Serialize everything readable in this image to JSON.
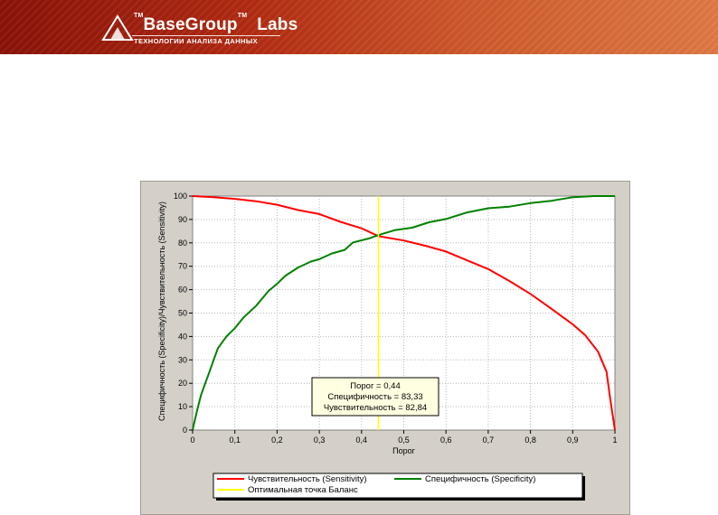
{
  "header": {
    "brand": "BaseGroup",
    "brand_suffix": "Labs",
    "trademark": "TM",
    "tagline": "ТЕХНОЛОГИИ АНАЛИЗА ДАННЫХ"
  },
  "chart_data": {
    "type": "line",
    "xlabel": "Порог",
    "ylabel": "Специфичность (Specificity)/Чувствительность (Sensitivity)",
    "xlim": [
      0,
      1
    ],
    "ylim": [
      0,
      100
    ],
    "x_ticks": [
      "0",
      "0,1",
      "0,2",
      "0,3",
      "0,4",
      "0,5",
      "0,6",
      "0,7",
      "0,8",
      "0,9",
      "1"
    ],
    "y_ticks": [
      "0",
      "10",
      "20",
      "30",
      "40",
      "50",
      "60",
      "70",
      "80",
      "90",
      "100"
    ],
    "grid": true,
    "series": [
      {
        "name": "Чувствительность (Sensitivity)",
        "color": "#ff0000",
        "points": [
          [
            0,
            100
          ],
          [
            0.05,
            99.5
          ],
          [
            0.1,
            98.8
          ],
          [
            0.15,
            97.8
          ],
          [
            0.2,
            96.3
          ],
          [
            0.25,
            94
          ],
          [
            0.3,
            92.3
          ],
          [
            0.35,
            89
          ],
          [
            0.4,
            86.2
          ],
          [
            0.44,
            82.84
          ],
          [
            0.5,
            81
          ],
          [
            0.55,
            78.8
          ],
          [
            0.6,
            76.3
          ],
          [
            0.65,
            72.5
          ],
          [
            0.7,
            68.8
          ],
          [
            0.75,
            63.7
          ],
          [
            0.8,
            58.2
          ],
          [
            0.85,
            51.8
          ],
          [
            0.9,
            45.2
          ],
          [
            0.93,
            40.5
          ],
          [
            0.96,
            33.5
          ],
          [
            0.98,
            25
          ],
          [
            0.99,
            12
          ],
          [
            1,
            0
          ]
        ]
      },
      {
        "name": "Специфичность (Specificity)",
        "color": "#008000",
        "points": [
          [
            0,
            0
          ],
          [
            0.01,
            8
          ],
          [
            0.02,
            15
          ],
          [
            0.03,
            20
          ],
          [
            0.04,
            25
          ],
          [
            0.05,
            30
          ],
          [
            0.06,
            35
          ],
          [
            0.08,
            40
          ],
          [
            0.1,
            43.5
          ],
          [
            0.12,
            48
          ],
          [
            0.15,
            53
          ],
          [
            0.18,
            59.5
          ],
          [
            0.2,
            62.5
          ],
          [
            0.22,
            66
          ],
          [
            0.25,
            69.5
          ],
          [
            0.28,
            72
          ],
          [
            0.3,
            73
          ],
          [
            0.33,
            75.5
          ],
          [
            0.36,
            77
          ],
          [
            0.38,
            80.2
          ],
          [
            0.42,
            82
          ],
          [
            0.44,
            83.33
          ],
          [
            0.48,
            85.5
          ],
          [
            0.52,
            86.5
          ],
          [
            0.56,
            88.8
          ],
          [
            0.6,
            90.2
          ],
          [
            0.65,
            93
          ],
          [
            0.7,
            94.8
          ],
          [
            0.75,
            95.5
          ],
          [
            0.8,
            97
          ],
          [
            0.85,
            98
          ],
          [
            0.9,
            99.5
          ],
          [
            0.95,
            100
          ],
          [
            1,
            100
          ]
        ]
      },
      {
        "name": "Оптимальная точка Баланс",
        "color": "#ffff00",
        "points": [
          [
            0.44,
            0
          ],
          [
            0.44,
            100
          ]
        ]
      }
    ],
    "annotation": {
      "lines": [
        "Порог =  0,44",
        "Специфичность = 83,33",
        "Чувствительность = 82,84"
      ]
    },
    "legend": {
      "placement": "bottom",
      "items": [
        {
          "label": "Чувствительность (Sensitivity)",
          "color": "#ff0000"
        },
        {
          "label": "Специфичность (Specificity)",
          "color": "#008000"
        },
        {
          "label": "Оптимальная точка Баланс",
          "color": "#ffff00"
        }
      ]
    }
  }
}
